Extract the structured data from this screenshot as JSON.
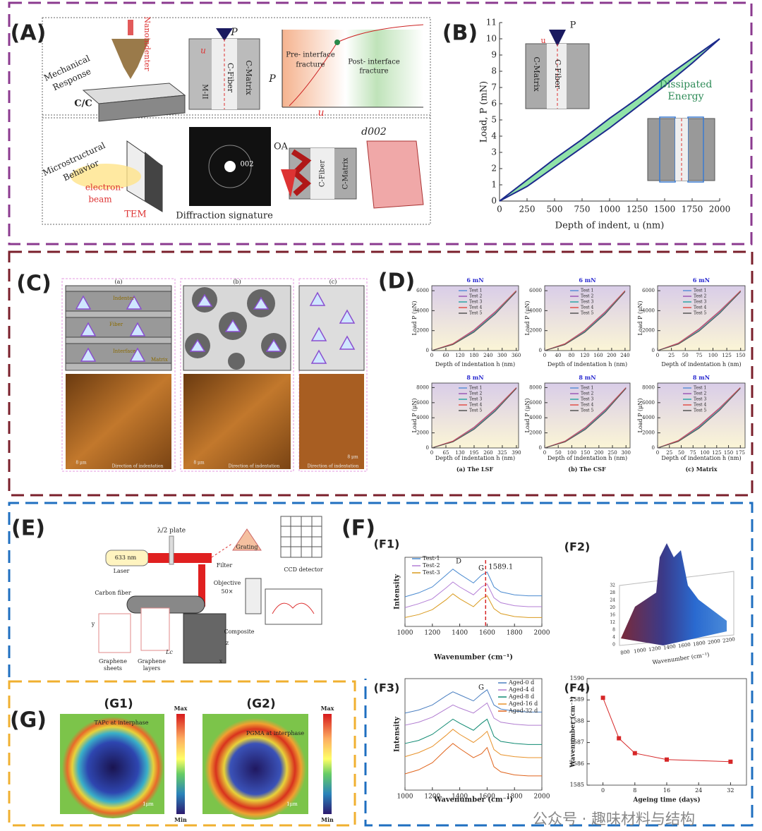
{
  "panel_labels": [
    "(A)",
    "(B)",
    "(C)",
    "(D)",
    "(E)",
    "(F)",
    "(G)"
  ],
  "panel_A": {
    "nanoindenter": "Nanoindenter",
    "mechanical_response": [
      "Mechanical",
      "Response"
    ],
    "cc": "C/C",
    "p_top": "P",
    "u_top": "u",
    "m2": "M-II",
    "c_fiber": "C-Fiber",
    "c_matrix": "C-Matrix",
    "p_axis": "P",
    "u_axis": "u",
    "pre": [
      "Pre- interface",
      "fracture"
    ],
    "post": [
      "Post- interface",
      "fracture"
    ],
    "microstructural": [
      "Microstructural",
      "Behavior"
    ],
    "electron_beam": [
      "electron-",
      "beam"
    ],
    "tem": "TEM",
    "peak": "002",
    "diffraction": "Diffraction signature",
    "oa": "OA",
    "c_fiber_2": "C-Fiber",
    "c_matrix_2": "C-Matrix",
    "d002": "d002"
  },
  "panel_C": {
    "sublabels": [
      "(a)",
      "(b)",
      "(c)"
    ],
    "callouts": [
      "Indenter",
      "Fiber",
      "Interface",
      "Matrix"
    ],
    "direction": [
      "Direction of indentation",
      "Direction of indentation",
      "Direction of indentation"
    ],
    "scale": [
      "8 μm",
      "8 μm",
      "8 μm"
    ]
  },
  "panel_D": {
    "captions": [
      "(a) The LSF",
      "(b) The CSF",
      "(c) Matrix"
    ]
  },
  "panel_E": {
    "plate": "λ/2 plate",
    "laser_nm": "633 nm",
    "laser": "Laser",
    "filter": "Filter",
    "grating": "Grating",
    "ccd": "CCD detector",
    "objective": [
      "Objective",
      "50×"
    ],
    "carbon_fiber": "Carbon fiber",
    "graphene_sheets": [
      "Graphene",
      "sheets"
    ],
    "graphene_layers": [
      "Graphene",
      "layers"
    ],
    "composite": "Composite",
    "lc": "Lc",
    "axes": [
      "x",
      "y",
      "z"
    ]
  },
  "panel_F": {
    "sublabels": [
      "(F1)",
      "(F2)",
      "(F3)",
      "(F4)"
    ],
    "f2_xticks": [
      "800",
      "1000",
      "1200",
      "1400",
      "1600",
      "1800",
      "2000",
      "2200"
    ],
    "f2_yticks": [
      "0",
      "4",
      "8",
      "12",
      "16",
      "20",
      "24",
      "28",
      "32"
    ],
    "f2_xlabel": "Wavenumber (cm⁻¹)"
  },
  "panel_G": {
    "sublabels": [
      "(G1)",
      "(G2)"
    ],
    "notes": [
      "TAPc at interphase",
      "PGMA at interphase"
    ],
    "bar_max": [
      "Max",
      "Max"
    ],
    "bar_min": [
      "Min",
      "Min"
    ],
    "scale": [
      "1μm",
      "1μm"
    ]
  },
  "watermark": "公众号 · 趣味材料与结构",
  "chart_data": [
    {
      "type": "line",
      "xlabel": "Depth of indent, u (nm)",
      "ylabel": "Load, P (mN)",
      "x": [
        0,
        250,
        500,
        750,
        1000,
        1250,
        1500,
        1750,
        2000
      ],
      "series": [
        {
          "color": "#1c2a8c",
          "values": [
            0,
            1.3,
            2.6,
            3.8,
            5.1,
            6.3,
            7.6,
            8.8,
            10
          ]
        },
        {
          "color": "#1c2a8c",
          "values": [
            0,
            0.9,
            2.1,
            3.3,
            4.5,
            5.8,
            7.1,
            8.5,
            10
          ]
        }
      ],
      "area_color": "#90e2a8",
      "xlim": [
        0,
        2000
      ],
      "xticks": [
        0,
        250,
        500,
        750,
        1000,
        1250,
        1500,
        1750,
        2000
      ],
      "ylim": [
        0,
        11
      ],
      "yticks": [
        0,
        1,
        2,
        3,
        4,
        5,
        6,
        7,
        8,
        9,
        10,
        11
      ],
      "labels": [
        "Dissipated",
        "Energy",
        "C-Matrix",
        "C-Fiber",
        "P",
        "u"
      ]
    },
    {
      "type": "line",
      "title": "6 mN",
      "xlabel": "Depth of indentation h (nm)",
      "ylabel": "Load P (μN)",
      "x": [
        0,
        90,
        180,
        270,
        360
      ],
      "xlim": [
        0,
        370
      ],
      "xticks": [
        0,
        60,
        120,
        180,
        240,
        300,
        360
      ],
      "ylim": [
        0,
        6500
      ],
      "yticks": [
        0,
        2000,
        4000,
        6000
      ],
      "series": [
        {
          "name": "Test 1",
          "color": "#5b8fd6",
          "values": [
            0,
            650,
            1980,
            3790,
            6000
          ]
        },
        {
          "name": "Test 2",
          "color": "#9b59b6",
          "values": [
            0,
            700,
            2080,
            3900,
            6000
          ]
        },
        {
          "name": "Test 3",
          "color": "#2ca6a4",
          "values": [
            0,
            620,
            1900,
            3700,
            5950
          ]
        },
        {
          "name": "Test 4",
          "color": "#e0504a",
          "values": [
            0,
            680,
            2030,
            3850,
            6000
          ]
        },
        {
          "name": "Test 5",
          "color": "#555555",
          "values": [
            0,
            600,
            1850,
            3650,
            5900
          ]
        }
      ]
    },
    {
      "type": "line",
      "title": "6 mN",
      "xlabel": "Depth of indentation h (nm)",
      "ylabel": "Load P (μN)",
      "x": [
        0,
        60,
        120,
        180,
        240
      ],
      "xlim": [
        0,
        255
      ],
      "xticks": [
        0,
        40,
        80,
        120,
        160,
        200,
        240
      ],
      "ylim": [
        0,
        6500
      ],
      "yticks": [
        0,
        2000,
        4000,
        6000
      ],
      "series": [
        {
          "name": "Test 1",
          "color": "#5b8fd6",
          "values": [
            0,
            640,
            1950,
            3760,
            6000
          ]
        },
        {
          "name": "Test 2",
          "color": "#9b59b6",
          "values": [
            0,
            690,
            2050,
            3880,
            6000
          ]
        },
        {
          "name": "Test 3",
          "color": "#2ca6a4",
          "values": [
            0,
            610,
            1890,
            3690,
            5950
          ]
        },
        {
          "name": "Test 4",
          "color": "#e0504a",
          "values": [
            0,
            670,
            2010,
            3830,
            6000
          ]
        },
        {
          "name": "Test 5",
          "color": "#555555",
          "values": [
            0,
            590,
            1840,
            3640,
            5900
          ]
        }
      ]
    },
    {
      "type": "line",
      "title": "6 mN",
      "xlabel": "Depth of indentation h (nm)",
      "ylabel": "Load P (μN)",
      "x": [
        0,
        37.5,
        75,
        112.5,
        150
      ],
      "xlim": [
        0,
        158
      ],
      "xticks": [
        0,
        25,
        50,
        75,
        100,
        125,
        150
      ],
      "ylim": [
        0,
        6500
      ],
      "yticks": [
        0,
        2000,
        4000,
        6000
      ],
      "series": [
        {
          "name": "Test 1",
          "color": "#5b8fd6",
          "values": [
            0,
            700,
            2100,
            3900,
            6000
          ]
        },
        {
          "name": "Test 2",
          "color": "#9b59b6",
          "values": [
            0,
            760,
            2200,
            4000,
            6000
          ]
        },
        {
          "name": "Test 3",
          "color": "#2ca6a4",
          "values": [
            0,
            660,
            2000,
            3800,
            5950
          ]
        },
        {
          "name": "Test 4",
          "color": "#e0504a",
          "values": [
            0,
            730,
            2150,
            3950,
            6000
          ]
        },
        {
          "name": "Test 5",
          "color": "#555555",
          "values": [
            0,
            640,
            1950,
            3750,
            5900
          ]
        }
      ]
    },
    {
      "type": "line",
      "title": "8 mN",
      "xlabel": "Depth of indentation h (nm)",
      "ylabel": "Load P (μN)",
      "x": [
        0,
        97.5,
        195,
        292.5,
        390
      ],
      "xlim": [
        0,
        400
      ],
      "xticks": [
        0,
        65,
        130,
        195,
        260,
        325,
        390
      ],
      "ylim": [
        0,
        8600
      ],
      "yticks": [
        0,
        2000,
        4000,
        6000,
        8000
      ],
      "series": [
        {
          "name": "Test 1",
          "color": "#5b8fd6",
          "values": [
            0,
            870,
            2640,
            5050,
            8000
          ]
        },
        {
          "name": "Test 2",
          "color": "#9b59b6",
          "values": [
            0,
            930,
            2770,
            5200,
            8000
          ]
        },
        {
          "name": "Test 3",
          "color": "#2ca6a4",
          "values": [
            0,
            830,
            2530,
            4930,
            7950
          ]
        },
        {
          "name": "Test 4",
          "color": "#e0504a",
          "values": [
            0,
            900,
            2700,
            5130,
            8000
          ]
        },
        {
          "name": "Test 5",
          "color": "#555555",
          "values": [
            0,
            800,
            2470,
            4870,
            7900
          ]
        }
      ]
    },
    {
      "type": "line",
      "title": "8 mN",
      "xlabel": "Depth of indentation h (nm)",
      "ylabel": "Load P (μN)",
      "x": [
        0,
        75,
        150,
        225,
        300
      ],
      "xlim": [
        0,
        315
      ],
      "xticks": [
        0,
        50,
        100,
        150,
        200,
        250,
        300
      ],
      "ylim": [
        0,
        8600
      ],
      "yticks": [
        0,
        2000,
        4000,
        6000,
        8000
      ],
      "series": [
        {
          "name": "Test 1",
          "color": "#5b8fd6",
          "values": [
            0,
            860,
            2600,
            5010,
            8000
          ]
        },
        {
          "name": "Test 2",
          "color": "#9b59b6",
          "values": [
            0,
            920,
            2740,
            5170,
            8000
          ]
        },
        {
          "name": "Test 3",
          "color": "#2ca6a4",
          "values": [
            0,
            820,
            2510,
            4910,
            7950
          ]
        },
        {
          "name": "Test 4",
          "color": "#e0504a",
          "values": [
            0,
            890,
            2680,
            5100,
            8000
          ]
        },
        {
          "name": "Test 5",
          "color": "#555555",
          "values": [
            0,
            790,
            2450,
            4850,
            7900
          ]
        }
      ]
    },
    {
      "type": "line",
      "title": "8 mN",
      "xlabel": "Depth of indentation h (nm)",
      "ylabel": "Load P (μN)",
      "x": [
        0,
        43.75,
        87.5,
        131.25,
        175
      ],
      "xlim": [
        0,
        185
      ],
      "xticks": [
        0,
        25,
        50,
        75,
        100,
        125,
        150,
        175
      ],
      "ylim": [
        0,
        8600
      ],
      "yticks": [
        0,
        2000,
        4000,
        6000,
        8000
      ],
      "series": [
        {
          "name": "Test 1",
          "color": "#5b8fd6",
          "values": [
            0,
            930,
            2800,
            5200,
            8000
          ]
        },
        {
          "name": "Test 2",
          "color": "#9b59b6",
          "values": [
            0,
            1000,
            2930,
            5330,
            8000
          ]
        },
        {
          "name": "Test 3",
          "color": "#2ca6a4",
          "values": [
            0,
            880,
            2670,
            5070,
            7950
          ]
        },
        {
          "name": "Test 4",
          "color": "#e0504a",
          "values": [
            0,
            970,
            2870,
            5270,
            8000
          ]
        },
        {
          "name": "Test 5",
          "color": "#555555",
          "values": [
            0,
            850,
            2600,
            5000,
            7900
          ]
        }
      ]
    },
    {
      "type": "line",
      "xlabel": "Wavenumber (cm⁻¹)",
      "ylabel": "Intensity",
      "x": [
        1000,
        1100,
        1200,
        1300,
        1350,
        1400,
        1500,
        1560,
        1600,
        1650,
        1700,
        1800,
        1900,
        2000
      ],
      "xlim": [
        1000,
        2000
      ],
      "xticks": [
        1000,
        1200,
        1400,
        1600,
        1800,
        2000
      ],
      "ylim": [
        3,
        10
      ],
      "series": [
        {
          "name": "Test-1",
          "color": "#4a8ad0",
          "values": [
            6.0,
            6.4,
            7.0,
            8.2,
            8.8,
            8.3,
            7.4,
            8.2,
            8.5,
            7.0,
            6.5,
            6.2,
            6.1,
            6.1
          ]
        },
        {
          "name": "Test-2",
          "color": "#b47fd6",
          "values": [
            4.9,
            5.3,
            5.8,
            6.9,
            7.5,
            7.0,
            6.2,
            7.0,
            7.3,
            5.9,
            5.4,
            5.1,
            5.0,
            5.0
          ]
        },
        {
          "name": "Test-3",
          "color": "#d99a1e",
          "values": [
            3.9,
            4.2,
            4.7,
            5.7,
            6.3,
            5.8,
            5.0,
            5.8,
            6.1,
            4.8,
            4.3,
            4.0,
            3.9,
            3.9
          ]
        }
      ],
      "peaks": [
        "D",
        "G"
      ],
      "marker_line": 1589.1
    },
    {
      "type": "line",
      "xlabel": "Wavenumber (cm⁻¹)",
      "ylabel": "Intensity",
      "x": [
        1000,
        1100,
        1200,
        1300,
        1350,
        1400,
        1500,
        1560,
        1600,
        1650,
        1700,
        1800,
        1900,
        2000
      ],
      "xlim": [
        1000,
        2000
      ],
      "xticks": [
        1000,
        1200,
        1400,
        1600,
        1800,
        2000
      ],
      "ylim": [
        1,
        12
      ],
      "series": [
        {
          "name": "Aged-0 d",
          "color": "#4a7fc1",
          "values": [
            8.6,
            8.9,
            9.4,
            10.3,
            10.7,
            10.4,
            9.8,
            10.5,
            10.9,
            9.4,
            9.0,
            8.8,
            8.7,
            8.7
          ]
        },
        {
          "name": "Aged-4 d",
          "color": "#b07cd0",
          "values": [
            7.4,
            7.7,
            8.2,
            9.0,
            9.4,
            9.1,
            8.6,
            9.2,
            9.6,
            8.1,
            7.7,
            7.5,
            7.4,
            7.4
          ]
        },
        {
          "name": "Aged-8 d",
          "color": "#0f8a72",
          "values": [
            5.6,
            5.9,
            6.5,
            7.5,
            8.0,
            7.6,
            6.9,
            7.6,
            8.0,
            6.3,
            5.8,
            5.6,
            5.5,
            5.5
          ]
        },
        {
          "name": "Aged-16 d",
          "color": "#e8922a",
          "values": [
            4.3,
            4.7,
            5.3,
            6.4,
            7.0,
            6.5,
            5.7,
            6.3,
            6.8,
            5.0,
            4.5,
            4.3,
            4.2,
            4.2
          ]
        },
        {
          "name": "Aged-32 d",
          "color": "#e0641c",
          "values": [
            2.6,
            3.0,
            3.7,
            5.0,
            5.6,
            5.1,
            4.2,
            4.6,
            5.2,
            3.3,
            2.8,
            2.5,
            2.4,
            2.4
          ]
        }
      ],
      "peaks": [
        "G"
      ]
    },
    {
      "type": "line",
      "xlabel": "Ageing time (days)",
      "ylabel": "Wavenumber (cm⁻¹)",
      "x": [
        0,
        4,
        8,
        16,
        32
      ],
      "xlim": [
        -4,
        36
      ],
      "xticks": [
        0,
        8,
        16,
        24,
        32
      ],
      "ylim": [
        1585,
        1590
      ],
      "yticks": [
        1585,
        1586,
        1587,
        1588,
        1589,
        1590
      ],
      "series": [
        {
          "color": "#d62728",
          "values": [
            1589.1,
            1587.2,
            1586.5,
            1586.2,
            1586.1
          ]
        }
      ],
      "markers": true
    }
  ]
}
